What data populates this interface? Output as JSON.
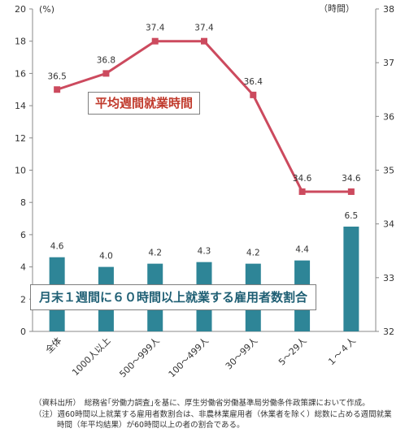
{
  "chart_data": {
    "type": "bar+line",
    "categories": [
      "全体",
      "1000人以上",
      "500～999人",
      "100～499人",
      "30～99人",
      "5～29人",
      "１～４人"
    ],
    "bar_series": {
      "name": "月末１週間に６０時間以上就業する雇用者数割合",
      "values": [
        4.6,
        4.0,
        4.2,
        4.3,
        4.2,
        4.4,
        6.5
      ],
      "axis": "left",
      "color": "#2e8597"
    },
    "line_series": {
      "name": "平均週間就業時間",
      "values": [
        36.5,
        36.8,
        37.4,
        37.4,
        36.4,
        34.6,
        34.6
      ],
      "axis": "right",
      "color": "#cc4a5e"
    },
    "left_axis": {
      "unit": "(%)",
      "range": [
        0,
        20
      ],
      "ticks": [
        0,
        2,
        4,
        6,
        8,
        10,
        12,
        14,
        16,
        18,
        20
      ]
    },
    "right_axis": {
      "unit": "（時間）",
      "range": [
        32,
        38
      ],
      "ticks": [
        32,
        33,
        34,
        35,
        36,
        37,
        38
      ]
    },
    "grid": false
  },
  "notes": {
    "source": "（資料出所）　総務省｢労働力調査｣を基に、厚生労働省労働基準局労働条件政策課において作成。",
    "note_line1": "（注）週60時間以上就業する雇用者数割合は、非農林業雇用者（休業者を除く）総数に占める週間就業",
    "note_line2": "時間（年平均結果）が60時間以上の者の割合である。"
  }
}
